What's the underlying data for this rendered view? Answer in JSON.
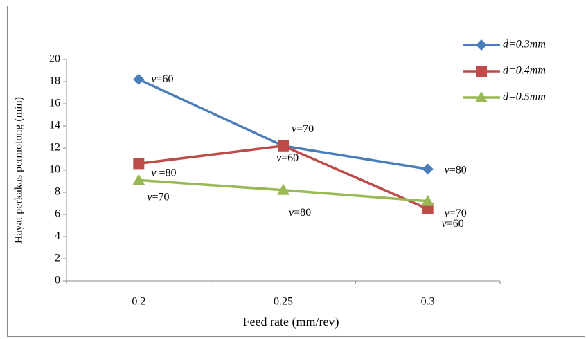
{
  "chart_data": {
    "type": "line",
    "y_label": "Hayat perkakas permotong (min)",
    "x_label": "Feed rate (mm/rev)",
    "categories": [
      "0.2",
      "0.25",
      "0.3"
    ],
    "series": [
      {
        "name": "d=0.3mm",
        "color": "#4a7ebb",
        "marker": "diamond",
        "values": [
          18.2,
          12.2,
          10.1
        ],
        "point_labels": [
          "v=60",
          "v=70",
          "v=80"
        ]
      },
      {
        "name": "d=0.4mm",
        "color": "#be4b48",
        "marker": "square",
        "values": [
          10.6,
          12.2,
          6.5
        ],
        "point_labels": [
          "v =80",
          "v=60",
          "v=60"
        ]
      },
      {
        "name": "d=0.5mm",
        "color": "#98b954",
        "marker": "triangle",
        "values": [
          9.1,
          8.2,
          7.2
        ],
        "point_labels": [
          "v=70",
          "v=80",
          "v=70"
        ]
      }
    ],
    "ylim": [
      0,
      20
    ],
    "yticks": [
      0,
      2,
      4,
      6,
      8,
      10,
      12,
      14,
      16,
      18,
      20
    ],
    "legend": "top-right"
  }
}
